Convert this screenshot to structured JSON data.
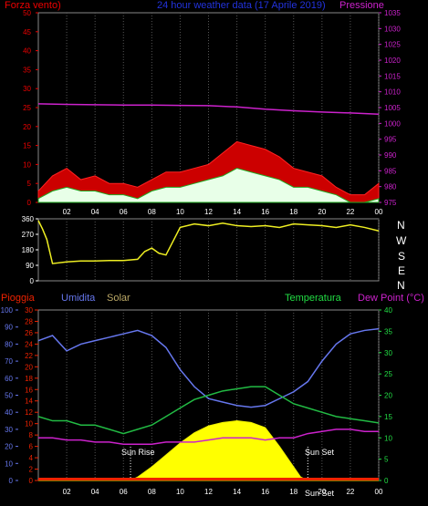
{
  "chart_data": [
    {
      "type": "line",
      "title": "24 hour weather data (17 Aprile 2019)",
      "left_axis_label": "Forza vento)",
      "right_axis_label": "Pressione",
      "x_ticks": [
        "02",
        "04",
        "06",
        "08",
        "10",
        "12",
        "14",
        "16",
        "18",
        "20",
        "22",
        "00"
      ],
      "y_left_ticks": [
        0,
        5,
        10,
        15,
        20,
        25,
        30,
        35,
        40,
        45,
        50
      ],
      "y_right_ticks": [
        975,
        980,
        985,
        990,
        995,
        1000,
        1005,
        1010,
        1015,
        1020,
        1025,
        1030,
        1035
      ],
      "ylim_left": [
        0,
        50
      ],
      "ylim_right": [
        975,
        1035
      ],
      "series": [
        {
          "name": "Pressione",
          "color": "#cc22cc",
          "axis": "right",
          "x": [
            0,
            2,
            4,
            6,
            8,
            10,
            12,
            14,
            16,
            18,
            20,
            22,
            24
          ],
          "values": [
            1006.2,
            1006.0,
            1005.9,
            1005.8,
            1005.8,
            1005.7,
            1005.6,
            1005.2,
            1004.5,
            1004.0,
            1003.6,
            1003.3,
            1002.9
          ]
        },
        {
          "name": "Raffica",
          "color": "#ee0000",
          "axis": "left",
          "x": [
            0,
            1,
            2,
            3,
            4,
            5,
            6,
            7,
            8,
            9,
            10,
            11,
            12,
            13,
            14,
            15,
            16,
            17,
            18,
            19,
            20,
            21,
            22,
            23,
            24
          ],
          "values": [
            3,
            7,
            9,
            6,
            7,
            5,
            5,
            4,
            6,
            8,
            8,
            9,
            10,
            13,
            16,
            15,
            14,
            12,
            9,
            8,
            7,
            4,
            2,
            2,
            5
          ]
        },
        {
          "name": "Vento medio",
          "color": "#88ee88",
          "axis": "left",
          "x": [
            0,
            1,
            2,
            3,
            4,
            5,
            6,
            7,
            8,
            9,
            10,
            11,
            12,
            13,
            14,
            15,
            16,
            17,
            18,
            19,
            20,
            21,
            22,
            23,
            24
          ],
          "values": [
            1,
            3,
            4,
            3,
            3,
            2,
            2,
            1,
            3,
            4,
            4,
            5,
            6,
            7,
            9,
            8,
            7,
            6,
            4,
            4,
            3,
            2,
            0,
            0,
            1
          ]
        }
      ]
    },
    {
      "type": "line",
      "title": "Direzione vento",
      "x_ticks": [
        "02",
        "04",
        "06",
        "08",
        "10",
        "12",
        "14",
        "16",
        "18",
        "20",
        "22",
        "00"
      ],
      "y_ticks": [
        0,
        90,
        180,
        270,
        360
      ],
      "ylim": [
        0,
        360
      ],
      "dir_labels": [
        "N",
        "W",
        "S",
        "E",
        "N"
      ],
      "series": [
        {
          "name": "Direzione",
          "color": "#eeee22",
          "x": [
            0,
            0.3,
            0.6,
            1,
            2,
            3,
            4,
            5,
            6,
            7,
            7.5,
            8,
            8.5,
            9,
            10,
            11,
            12,
            13,
            14,
            15,
            16,
            17,
            18,
            19,
            20,
            21,
            22,
            23,
            24
          ],
          "values": [
            350,
            300,
            240,
            100,
            110,
            115,
            115,
            118,
            118,
            125,
            170,
            190,
            160,
            150,
            310,
            330,
            320,
            335,
            320,
            315,
            320,
            310,
            330,
            325,
            320,
            310,
            325,
            310,
            290
          ]
        }
      ]
    },
    {
      "type": "area",
      "legend": [
        "Pioggia",
        "Umidita",
        "Solar",
        "Temperatura",
        "Dew Point (°C)"
      ],
      "annotations": [
        "Sun Rise",
        "Sun Set",
        "Sun Set"
      ],
      "x_ticks": [
        "02",
        "04",
        "06",
        "08",
        "10",
        "12",
        "14",
        "16",
        "18",
        "20",
        "22",
        "00"
      ],
      "y_umidita_ticks": [
        0,
        10,
        20,
        30,
        40,
        50,
        60,
        70,
        80,
        90,
        100
      ],
      "y_pioggia_ticks": [
        0,
        2,
        4,
        6,
        8,
        10,
        12,
        14,
        16,
        18,
        20,
        22,
        24,
        26,
        28,
        30
      ],
      "y_temp_ticks": [
        0,
        5,
        10,
        15,
        20,
        25,
        30,
        35,
        40
      ],
      "ylim_umidita": [
        0,
        100
      ],
      "ylim_temp": [
        0,
        40
      ],
      "series": [
        {
          "name": "Umidita",
          "color": "#6677ee",
          "axis": "umidita",
          "x": [
            0,
            1,
            2,
            3,
            4,
            5,
            6,
            7,
            8,
            9,
            10,
            11,
            12,
            13,
            14,
            15,
            16,
            17,
            18,
            19,
            20,
            21,
            22,
            23,
            24
          ],
          "values": [
            82,
            85,
            76,
            80,
            82,
            84,
            86,
            88,
            85,
            78,
            65,
            55,
            48,
            46,
            44,
            43,
            44,
            48,
            52,
            58,
            70,
            80,
            86,
            88,
            89
          ]
        },
        {
          "name": "Temperatura",
          "color": "#22bb44",
          "axis": "temp",
          "x": [
            0,
            1,
            2,
            3,
            4,
            5,
            6,
            7,
            8,
            9,
            10,
            11,
            12,
            13,
            14,
            15,
            16,
            17,
            18,
            19,
            20,
            21,
            22,
            23,
            24
          ],
          "values": [
            15,
            14,
            14,
            13,
            13,
            12,
            11,
            12,
            13,
            15,
            17,
            19,
            20,
            21,
            21.5,
            22,
            22,
            20,
            18,
            17,
            16,
            15,
            14.5,
            14,
            13.5
          ]
        },
        {
          "name": "Dew Point (°C)",
          "color": "#cc22cc",
          "axis": "temp",
          "x": [
            0,
            1,
            2,
            3,
            4,
            5,
            6,
            7,
            8,
            9,
            10,
            11,
            12,
            13,
            14,
            15,
            16,
            17,
            18,
            19,
            20,
            21,
            22,
            23,
            24
          ],
          "values": [
            10,
            10,
            9.5,
            9.5,
            9,
            9,
            8.5,
            8.5,
            8.5,
            9,
            9,
            9,
            9.5,
            10,
            10,
            10,
            9.5,
            10,
            10,
            11,
            11.5,
            12,
            12,
            11.5,
            11.5
          ]
        },
        {
          "name": "Solar",
          "color": "#ffff00",
          "axis": "umidita",
          "x": [
            0,
            6.5,
            7,
            8,
            9,
            10,
            11,
            12,
            13,
            14,
            15,
            16,
            17,
            18,
            18.5,
            19,
            24
          ],
          "values": [
            0,
            0,
            2,
            8,
            15,
            22,
            28,
            32,
            34,
            35,
            34,
            31,
            20,
            8,
            2,
            0,
            0
          ]
        },
        {
          "name": "Pioggia",
          "color": "#ee2200",
          "axis": "pioggia",
          "x": [
            0,
            24
          ],
          "values": [
            0,
            0
          ]
        }
      ]
    }
  ],
  "ui": {
    "top_left_label": "Forza vento)",
    "top_title": "24 hour weather data (17 Aprile 2019)",
    "top_right_label": "Pressione",
    "dir_letters": [
      "N",
      "W",
      "S",
      "E",
      "N"
    ],
    "bottom_labels": {
      "pioggia": "Pioggia",
      "umidita": "Umidita",
      "solar": "Solar",
      "temperatura": "Temperatura",
      "dew": "Dew Point (°C)"
    },
    "sun_rise": "Sun Rise",
    "sun_set": "Sun Set",
    "sun_set2": "Sun Set"
  }
}
